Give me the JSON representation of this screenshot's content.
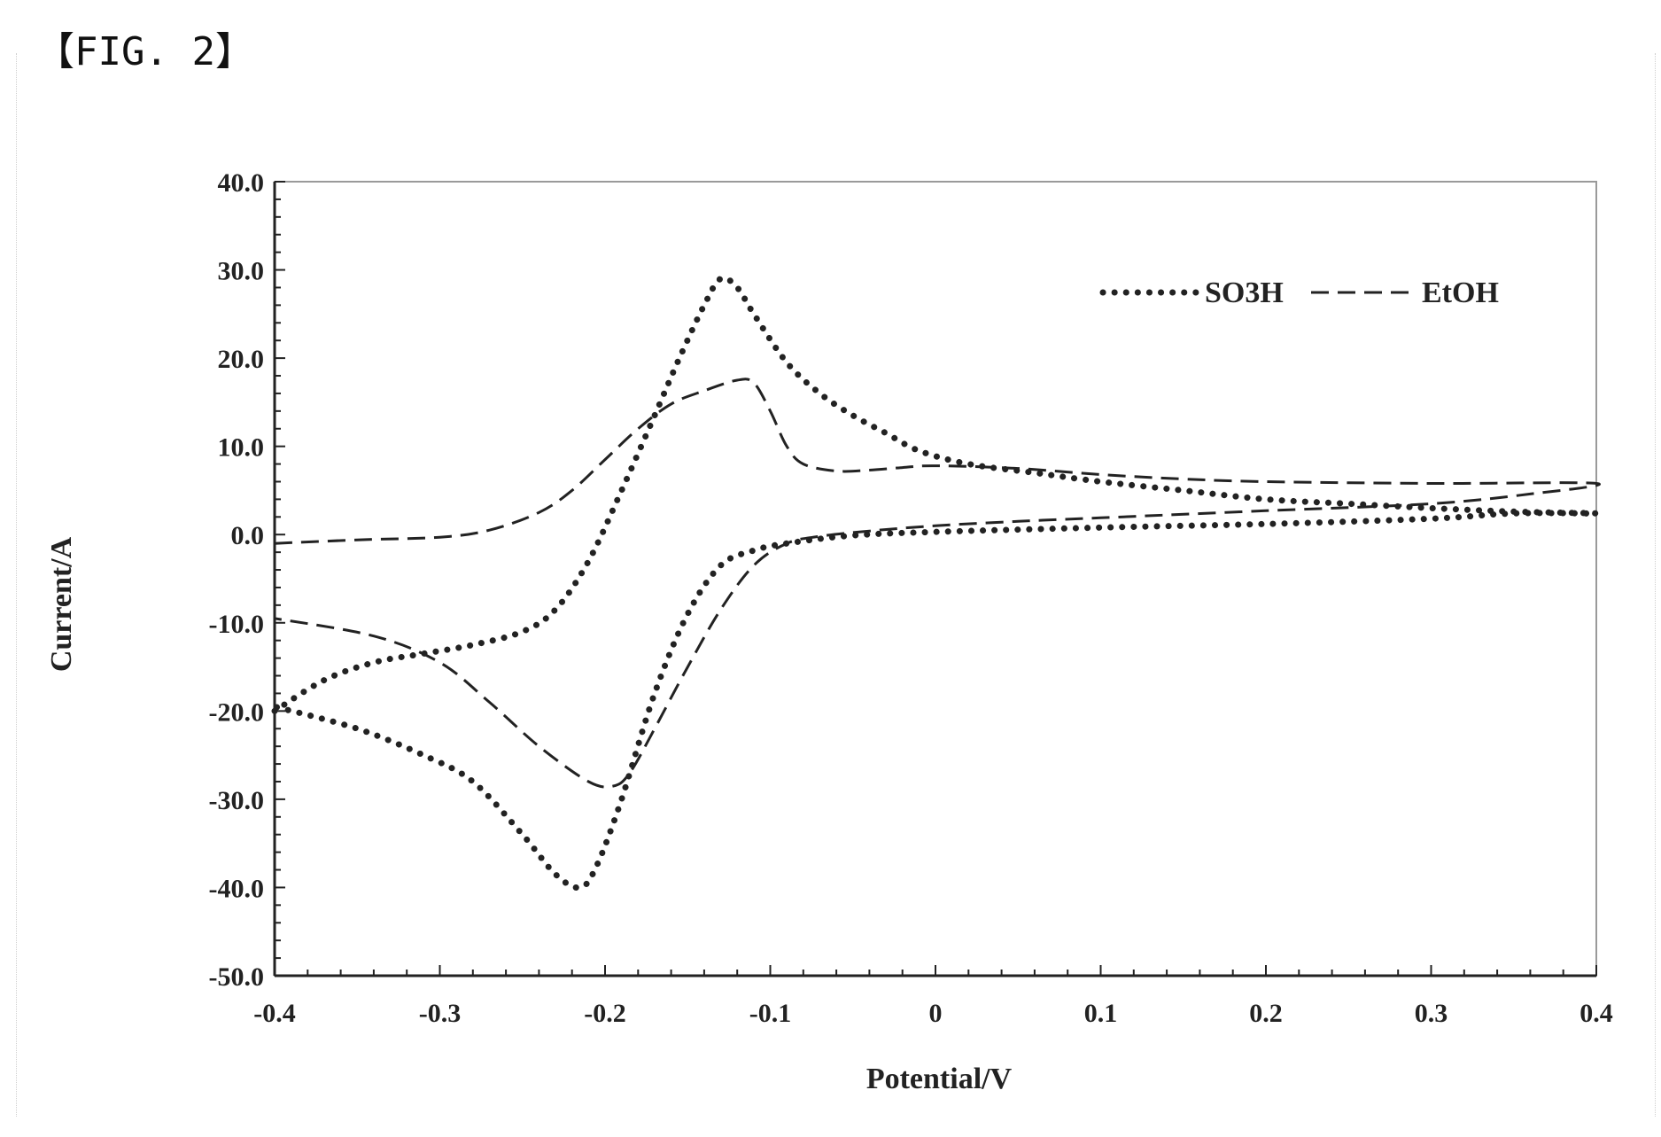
{
  "figure_label": "【FIG. 2】",
  "chart_data": {
    "type": "line",
    "title": "",
    "xlabel": "Potential/V",
    "ylabel": "Current/A",
    "xlim": [
      -0.4,
      0.4
    ],
    "ylim": [
      -50,
      40
    ],
    "x_ticks": [
      -0.4,
      -0.3,
      -0.2,
      -0.1,
      0,
      0.1,
      0.2,
      0.3,
      0.4
    ],
    "x_tick_labels": [
      "-0.4",
      "-0.3",
      "-0.2",
      "-0.1",
      "0",
      "0.1",
      "0.2",
      "0.3",
      "0.4"
    ],
    "y_ticks": [
      40,
      30,
      20,
      10,
      0,
      -10,
      -20,
      -30,
      -40,
      -50
    ],
    "y_tick_labels": [
      "40.0",
      "30.0",
      "20.0",
      "10.0",
      "0.0",
      "-10.0",
      "-20.0",
      "-30.0",
      "-40.0",
      "-50.0"
    ],
    "grid": false,
    "legend_position": "top-right",
    "series": [
      {
        "name": "SO3H",
        "style": "dotted",
        "color": "#222222",
        "points": [
          [
            -0.4,
            -20.0
          ],
          [
            -0.37,
            -16.5
          ],
          [
            -0.34,
            -14.5
          ],
          [
            -0.31,
            -13.5
          ],
          [
            -0.28,
            -12.5
          ],
          [
            -0.25,
            -11.0
          ],
          [
            -0.23,
            -8.5
          ],
          [
            -0.21,
            -3.0
          ],
          [
            -0.19,
            5.0
          ],
          [
            -0.17,
            13.5
          ],
          [
            -0.155,
            20.0
          ],
          [
            -0.14,
            26.0
          ],
          [
            -0.13,
            29.0
          ],
          [
            -0.12,
            28.0
          ],
          [
            -0.11,
            25.0
          ],
          [
            -0.09,
            19.5
          ],
          [
            -0.07,
            16.0
          ],
          [
            -0.05,
            13.5
          ],
          [
            -0.03,
            11.5
          ],
          [
            -0.01,
            9.5
          ],
          [
            0.02,
            8.0
          ],
          [
            0.06,
            7.0
          ],
          [
            0.1,
            6.0
          ],
          [
            0.15,
            5.0
          ],
          [
            0.2,
            4.0
          ],
          [
            0.25,
            3.5
          ],
          [
            0.3,
            3.0
          ],
          [
            0.35,
            2.6
          ],
          [
            0.4,
            2.4
          ],
          [
            0.35,
            2.4
          ],
          [
            0.3,
            1.8
          ],
          [
            0.2,
            1.2
          ],
          [
            0.1,
            0.8
          ],
          [
            0.0,
            0.3
          ],
          [
            -0.05,
            -0.1
          ],
          [
            -0.09,
            -1.0
          ],
          [
            -0.11,
            -1.8
          ],
          [
            -0.13,
            -3.5
          ],
          [
            -0.15,
            -9.0
          ],
          [
            -0.17,
            -18.0
          ],
          [
            -0.19,
            -30.0
          ],
          [
            -0.205,
            -37.5
          ],
          [
            -0.215,
            -40.0
          ],
          [
            -0.23,
            -38.5
          ],
          [
            -0.25,
            -34.0
          ],
          [
            -0.28,
            -28.0
          ],
          [
            -0.31,
            -25.0
          ],
          [
            -0.35,
            -22.0
          ],
          [
            -0.4,
            -19.5
          ]
        ]
      },
      {
        "name": "EtOH",
        "style": "dashed",
        "color": "#222222",
        "points": [
          [
            -0.4,
            -1.0
          ],
          [
            -0.35,
            -0.6
          ],
          [
            -0.3,
            -0.3
          ],
          [
            -0.27,
            0.5
          ],
          [
            -0.24,
            2.5
          ],
          [
            -0.22,
            5.0
          ],
          [
            -0.2,
            8.5
          ],
          [
            -0.18,
            12.0
          ],
          [
            -0.16,
            14.8
          ],
          [
            -0.14,
            16.3
          ],
          [
            -0.12,
            17.5
          ],
          [
            -0.11,
            17.2
          ],
          [
            -0.1,
            14.0
          ],
          [
            -0.09,
            10.0
          ],
          [
            -0.08,
            8.0
          ],
          [
            -0.06,
            7.2
          ],
          [
            -0.04,
            7.3
          ],
          [
            -0.02,
            7.6
          ],
          [
            0.0,
            7.8
          ],
          [
            0.05,
            7.5
          ],
          [
            0.1,
            6.8
          ],
          [
            0.15,
            6.3
          ],
          [
            0.2,
            6.0
          ],
          [
            0.3,
            5.8
          ],
          [
            0.4,
            5.8
          ],
          [
            0.36,
            4.6
          ],
          [
            0.3,
            3.5
          ],
          [
            0.2,
            2.7
          ],
          [
            0.1,
            1.9
          ],
          [
            0.05,
            1.5
          ],
          [
            0.0,
            1.0
          ],
          [
            -0.04,
            0.4
          ],
          [
            -0.07,
            -0.2
          ],
          [
            -0.09,
            -1.0
          ],
          [
            -0.11,
            -3.5
          ],
          [
            -0.13,
            -8.5
          ],
          [
            -0.15,
            -15.0
          ],
          [
            -0.17,
            -22.0
          ],
          [
            -0.185,
            -27.0
          ],
          [
            -0.195,
            -28.5
          ],
          [
            -0.21,
            -28.0
          ],
          [
            -0.24,
            -24.0
          ],
          [
            -0.27,
            -19.0
          ],
          [
            -0.3,
            -14.5
          ],
          [
            -0.34,
            -11.5
          ],
          [
            -0.4,
            -9.5
          ]
        ]
      }
    ]
  }
}
